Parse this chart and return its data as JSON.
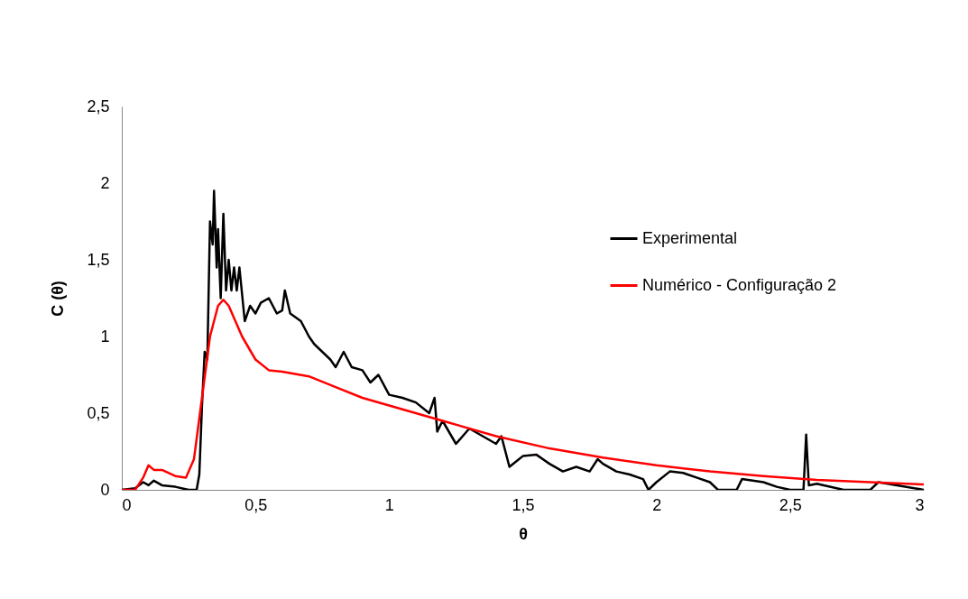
{
  "chart_data": {
    "type": "line",
    "xlabel": "θ",
    "ylabel": "C (θ)",
    "xlim": [
      0,
      3
    ],
    "xticks": [
      0,
      {
        "value": 0.5,
        "label": "0,5"
      },
      1,
      {
        "value": 1.5,
        "label": "1,5"
      },
      2,
      {
        "value": 2.5,
        "label": "2,5"
      },
      3
    ],
    "ylim": [
      0,
      2.5
    ],
    "yticks": [
      0,
      {
        "value": 0.5,
        "label": "0,5"
      },
      1,
      {
        "value": 1.5,
        "label": "1,5"
      },
      2,
      {
        "value": 2.5,
        "label": "2,5"
      }
    ],
    "legend": "right",
    "line_style": "solid",
    "series": [
      {
        "name": "Experimental",
        "color": "#000000",
        "x": [
          0,
          0.05,
          0.08,
          0.1,
          0.12,
          0.15,
          0.2,
          0.25,
          0.28,
          0.29,
          0.3,
          0.31,
          0.32,
          0.33,
          0.34,
          0.345,
          0.355,
          0.36,
          0.37,
          0.38,
          0.39,
          0.4,
          0.41,
          0.42,
          0.43,
          0.44,
          0.46,
          0.48,
          0.5,
          0.52,
          0.55,
          0.58,
          0.6,
          0.61,
          0.63,
          0.67,
          0.7,
          0.72,
          0.75,
          0.78,
          0.8,
          0.83,
          0.86,
          0.9,
          0.93,
          0.96,
          1.0,
          1.05,
          1.1,
          1.15,
          1.17,
          1.18,
          1.2,
          1.25,
          1.3,
          1.35,
          1.4,
          1.42,
          1.45,
          1.5,
          1.55,
          1.6,
          1.65,
          1.7,
          1.75,
          1.78,
          1.8,
          1.85,
          1.9,
          1.95,
          1.97,
          2.0,
          2.05,
          2.1,
          2.15,
          2.2,
          2.23,
          2.3,
          2.32,
          2.4,
          2.45,
          2.5,
          2.55,
          2.56,
          2.57,
          2.6,
          2.7,
          2.8,
          2.83,
          2.9,
          3.0
        ],
        "values": [
          0,
          0.01,
          0.05,
          0.03,
          0.06,
          0.03,
          0.02,
          0,
          0,
          0.1,
          0.55,
          0.9,
          0.85,
          1.75,
          1.6,
          1.95,
          1.45,
          1.7,
          1.25,
          1.8,
          1.3,
          1.5,
          1.3,
          1.45,
          1.3,
          1.45,
          1.1,
          1.2,
          1.15,
          1.22,
          1.25,
          1.15,
          1.17,
          1.3,
          1.15,
          1.1,
          1.0,
          0.95,
          0.9,
          0.85,
          0.8,
          0.9,
          0.8,
          0.78,
          0.7,
          0.75,
          0.62,
          0.6,
          0.57,
          0.5,
          0.6,
          0.38,
          0.45,
          0.3,
          0.4,
          0.35,
          0.3,
          0.35,
          0.15,
          0.22,
          0.23,
          0.17,
          0.12,
          0.15,
          0.12,
          0.2,
          0.17,
          0.12,
          0.1,
          0.07,
          0,
          0.05,
          0.12,
          0.11,
          0.08,
          0.05,
          0,
          0,
          0.07,
          0.05,
          0.02,
          0,
          0,
          0.36,
          0.03,
          0.04,
          0,
          0,
          0.05,
          0.03,
          0
        ]
      },
      {
        "name": "Numérico - Configuração 2",
        "color": "#ff0000",
        "x": [
          0,
          0.05,
          0.08,
          0.1,
          0.12,
          0.15,
          0.2,
          0.24,
          0.27,
          0.3,
          0.33,
          0.36,
          0.38,
          0.4,
          0.45,
          0.5,
          0.55,
          0.6,
          0.7,
          0.8,
          0.9,
          1.0,
          1.2,
          1.4,
          1.6,
          1.8,
          2.0,
          2.2,
          2.4,
          2.6,
          2.8,
          3.0
        ],
        "values": [
          0,
          0,
          0.08,
          0.16,
          0.13,
          0.13,
          0.09,
          0.08,
          0.2,
          0.6,
          1.0,
          1.2,
          1.24,
          1.2,
          1.0,
          0.85,
          0.78,
          0.77,
          0.74,
          0.67,
          0.6,
          0.55,
          0.45,
          0.35,
          0.27,
          0.21,
          0.16,
          0.12,
          0.09,
          0.065,
          0.05,
          0.035
        ]
      }
    ]
  }
}
